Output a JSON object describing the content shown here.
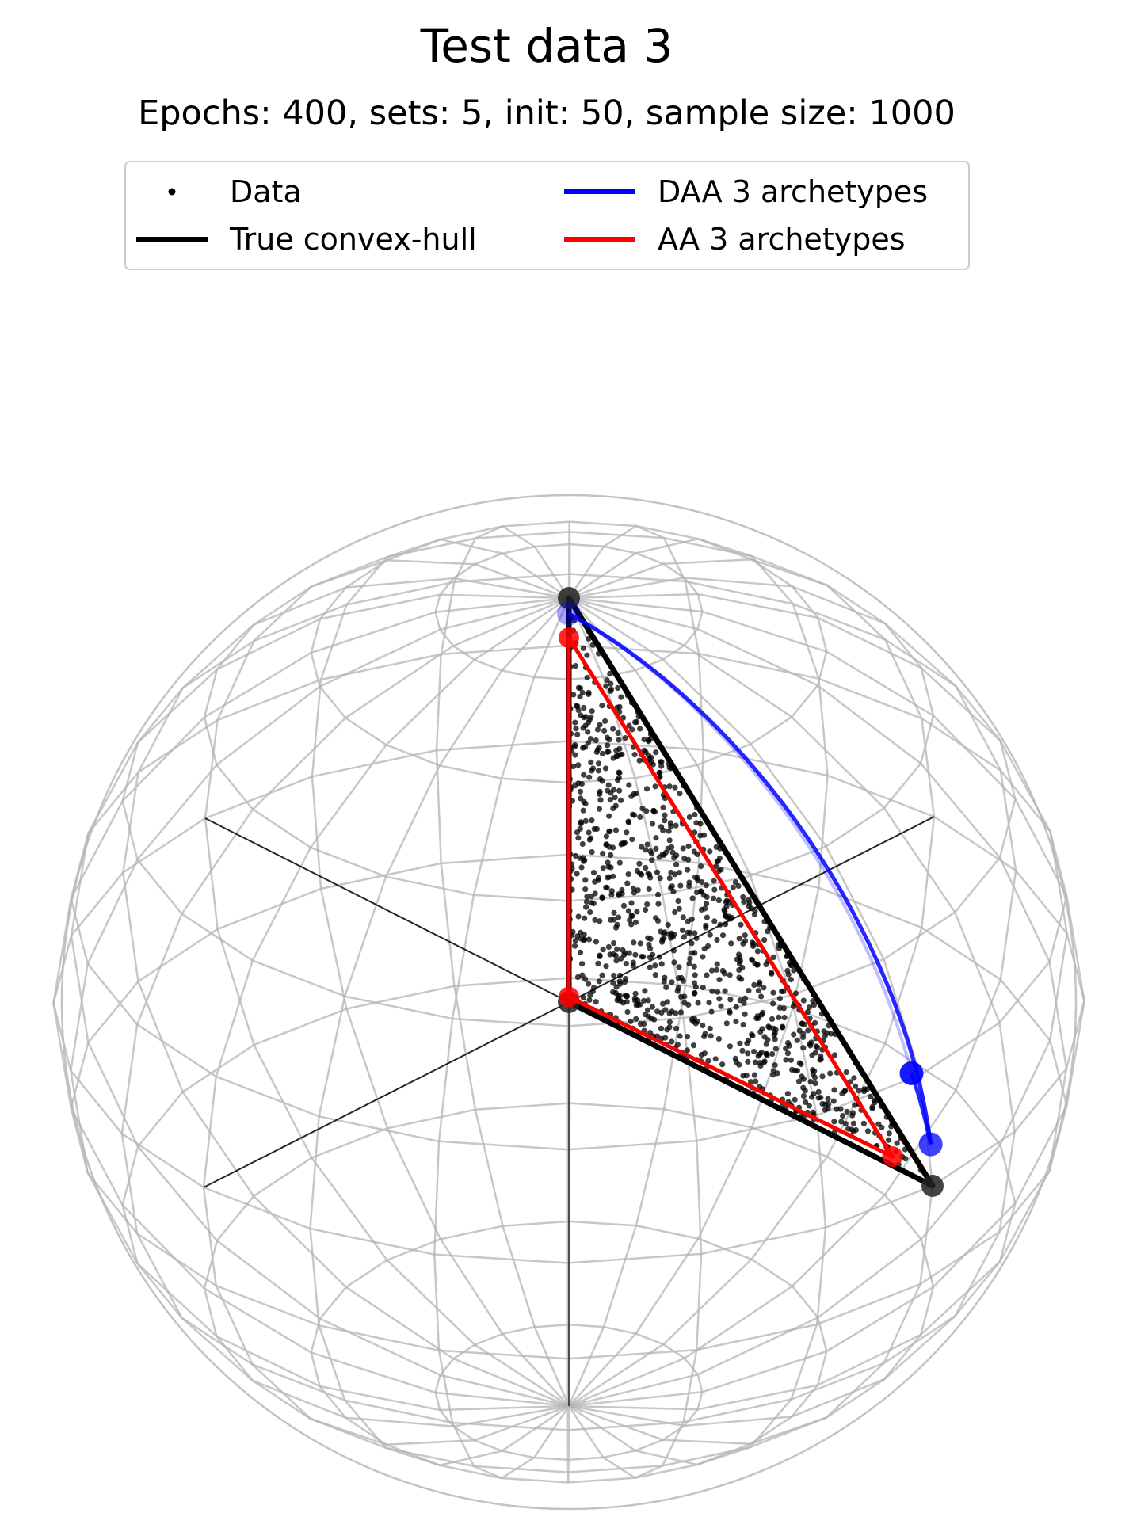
{
  "chart_data": {
    "type": "scatter",
    "projection": "3d-sphere",
    "title": "Test data 3",
    "subtitle": "Epochs: 400, sets: 5, init: 50, sample size: 1000",
    "grid": false,
    "legend": {
      "placement": "top-center",
      "entries": [
        {
          "label": "Data",
          "marker": "dot",
          "color": "#000000"
        },
        {
          "label": "DAA 3 archetypes",
          "marker": "line",
          "color": "#0000ff"
        },
        {
          "label": "True convex-hull",
          "marker": "line",
          "color": "#000000"
        },
        {
          "label": "AA 3 archetypes",
          "marker": "line",
          "color": "#ff0000"
        }
      ]
    },
    "axes": {
      "x": [
        -1,
        1
      ],
      "y": [
        -1,
        1
      ],
      "z": [
        -1,
        1
      ]
    },
    "true_hull_vertices": [
      [
        0,
        0,
        0
      ],
      [
        0,
        0,
        1
      ],
      [
        0,
        1,
        0
      ]
    ],
    "daa_archetypes": [
      [
        0.04,
        0.04,
        0.99
      ],
      [
        0.02,
        0.96,
        0.27
      ],
      [
        0.0,
        0.99,
        0.1
      ]
    ],
    "aa_archetypes": [
      [
        0.02,
        0.02,
        0.92
      ],
      [
        0.03,
        0.92,
        0.05
      ],
      [
        0.03,
        0.03,
        0.04
      ]
    ],
    "data_description": "1000 points sampled inside the simplex with vertices (0,0,0), (0,0,1), (0,1,0)",
    "colors": {
      "data": "#000000",
      "hull": "#000000",
      "daa": "#0000ff",
      "aa": "#ff0000",
      "sphere": "#b4b4b4"
    }
  }
}
